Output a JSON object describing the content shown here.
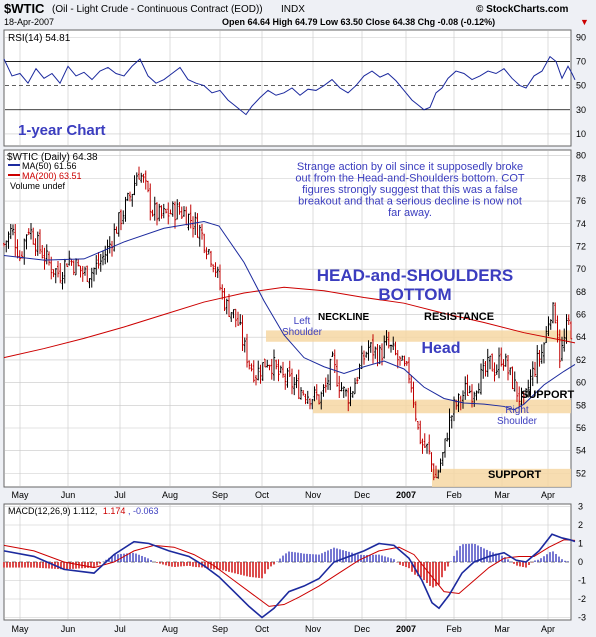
{
  "header": {
    "title": "$WTIC",
    "subtitle": "(Oil - Light Crude - Continuous Contract (EOD))",
    "exchange": "INDX",
    "date": "18-Apr-2007",
    "ohlc": "Open 64.64  High 64.79  Low 63.50  Close 64.38  Chg -0.08 (-0.12%)",
    "chg_arrow": "▼",
    "brand": "© StockCharts.com"
  },
  "colors": {
    "background": "#eef0f5",
    "panel": "#ffffff",
    "grid": "#c8c8c8",
    "up_bar": "#000000",
    "down_bar": "#c00000",
    "ma50": "#1c2a9e",
    "ma200": "#cc0000",
    "annotation_blue": "#3b3dbf",
    "band_fill": "#f6d7a3",
    "rsi_line": "#1c2a9e",
    "rsi_fill_low": "#e07090"
  },
  "rsi_panel": {
    "legend": "RSI(14) 54.81",
    "ticks": [
      "90",
      "70",
      "50",
      "30",
      "10"
    ],
    "label": "1-year Chart"
  },
  "price_panel": {
    "legend_main": "$WTIC (Daily) 64.38",
    "legend_ma50": "MA(50) 61.56",
    "legend_ma200": "MA(200) 63.51",
    "legend_volume": "Volume undef",
    "commentary": "Strange action by oil since it supposedly broke out from the Head-and-Shoulders bottom. COT figures strongly suggest that this was a false breakout and that a serious decline is now not far away.",
    "pattern_title_line1": "HEAD-and-SHOULDERS",
    "pattern_title_line2": "BOTTOM",
    "labels": {
      "neckline": "NECKLINE",
      "resistance": "RESISTANCE",
      "left_shoulder_1": "Left",
      "left_shoulder_2": "Shoulder",
      "head": "Head",
      "right_shoulder_1": "Right",
      "right_shoulder_2": "Shoulder",
      "support_upper": "SUPPORT",
      "support_lower": "SUPPORT"
    }
  },
  "macd_panel": {
    "legend_main": "MACD(12,26,9) 1.112,",
    "legend_signal": "1.174",
    "legend_hist": ", -0.063",
    "ticks": [
      "3",
      "2",
      "1",
      "0",
      "-1",
      "-2",
      "-3"
    ]
  },
  "x_axis": {
    "months": [
      "May",
      "Jun",
      "Jul",
      "Aug",
      "Sep",
      "Oct",
      "Nov",
      "Dec",
      "2007",
      "Feb",
      "Mar",
      "Apr"
    ]
  },
  "chart_data": {
    "type": "ohlc",
    "price_axis": {
      "ylim": [
        51,
        80
      ],
      "ticks": [
        52,
        54,
        56,
        58,
        60,
        62,
        64,
        66,
        68,
        70,
        72,
        74,
        76,
        78,
        80
      ]
    },
    "resistance_band": [
      63.6,
      64.6
    ],
    "upper_support_band": [
      57.3,
      58.5
    ],
    "lower_support_band": [
      50.8,
      52.4
    ],
    "price_path": [
      [
        0,
        72.2
      ],
      [
        8,
        73.5
      ],
      [
        16,
        71.0
      ],
      [
        24,
        73.8
      ],
      [
        32,
        72.4
      ],
      [
        40,
        71.2
      ],
      [
        48,
        70.1
      ],
      [
        56,
        69.6
      ],
      [
        64,
        71.0
      ],
      [
        72,
        70.3
      ],
      [
        80,
        69.6
      ],
      [
        88,
        69.8
      ],
      [
        96,
        70.6
      ],
      [
        104,
        71.8
      ],
      [
        112,
        73.6
      ],
      [
        120,
        75.2
      ],
      [
        128,
        76.8
      ],
      [
        134,
        78.8
      ],
      [
        140,
        77.6
      ],
      [
        148,
        75.2
      ],
      [
        156,
        74.6
      ],
      [
        164,
        74.9
      ],
      [
        172,
        75.2
      ],
      [
        180,
        75.0
      ],
      [
        188,
        74.3
      ],
      [
        196,
        73.4
      ],
      [
        204,
        71.8
      ],
      [
        210,
        70.6
      ],
      [
        216,
        68.4
      ],
      [
        222,
        66.8
      ],
      [
        228,
        66.3
      ],
      [
        234,
        65.2
      ],
      [
        240,
        63.2
      ],
      [
        246,
        61.6
      ],
      [
        252,
        60.8
      ],
      [
        258,
        61.4
      ],
      [
        264,
        62.1
      ],
      [
        270,
        61.4
      ],
      [
        276,
        60.5
      ],
      [
        284,
        60.2
      ],
      [
        292,
        59.6
      ],
      [
        300,
        59.2
      ],
      [
        308,
        58.8
      ],
      [
        316,
        58.6
      ],
      [
        322,
        59.6
      ],
      [
        328,
        61.8
      ],
      [
        334,
        60.2
      ],
      [
        340,
        59.1
      ],
      [
        346,
        58.8
      ],
      [
        352,
        60.4
      ],
      [
        358,
        61.8
      ],
      [
        364,
        63.1
      ],
      [
        370,
        62.8
      ],
      [
        376,
        62.4
      ],
      [
        382,
        63.4
      ],
      [
        388,
        62.8
      ],
      [
        394,
        62.0
      ],
      [
        400,
        61.2
      ],
      [
        406,
        60.6
      ],
      [
        410,
        58.4
      ],
      [
        414,
        55.8
      ],
      [
        418,
        54.6
      ],
      [
        424,
        54.1
      ],
      [
        428,
        52.6
      ],
      [
        432,
        51.6
      ],
      [
        436,
        52.8
      ],
      [
        440,
        53.9
      ],
      [
        444,
        56.1
      ],
      [
        450,
        57.8
      ],
      [
        456,
        58.4
      ],
      [
        462,
        59.4
      ],
      [
        468,
        59.2
      ],
      [
        474,
        60.2
      ],
      [
        480,
        60.7
      ],
      [
        486,
        61.7
      ],
      [
        492,
        61.1
      ],
      [
        498,
        62.5
      ],
      [
        504,
        61.0
      ],
      [
        510,
        59.8
      ],
      [
        516,
        58.6
      ],
      [
        520,
        57.9
      ],
      [
        526,
        60.2
      ],
      [
        532,
        61.6
      ],
      [
        538,
        62.7
      ],
      [
        542,
        64.2
      ],
      [
        546,
        66.4
      ],
      [
        552,
        65.9
      ],
      [
        556,
        62.2
      ],
      [
        560,
        63.6
      ],
      [
        564,
        65.3
      ],
      [
        568,
        64.4
      ],
      [
        571,
        64.4
      ]
    ],
    "ma50": [
      [
        0,
        71.2
      ],
      [
        40,
        70.8
      ],
      [
        80,
        70.9
      ],
      [
        120,
        72.4
      ],
      [
        160,
        73.6
      ],
      [
        200,
        74.2
      ],
      [
        215,
        73.8
      ],
      [
        240,
        70.6
      ],
      [
        260,
        67.2
      ],
      [
        280,
        64.2
      ],
      [
        300,
        62.2
      ],
      [
        320,
        61.4
      ],
      [
        340,
        60.8
      ],
      [
        360,
        61.4
      ],
      [
        380,
        61.9
      ],
      [
        400,
        61.2
      ],
      [
        420,
        59.6
      ],
      [
        440,
        58.6
      ],
      [
        460,
        58.2
      ],
      [
        480,
        58.1
      ],
      [
        500,
        57.9
      ],
      [
        510,
        57.6
      ],
      [
        520,
        58.1
      ],
      [
        540,
        59.8
      ],
      [
        560,
        61.0
      ],
      [
        571,
        61.6
      ]
    ],
    "ma200": [
      [
        0,
        62.2
      ],
      [
        40,
        63.0
      ],
      [
        80,
        63.9
      ],
      [
        120,
        64.9
      ],
      [
        160,
        66.0
      ],
      [
        200,
        67.1
      ],
      [
        240,
        67.9
      ],
      [
        280,
        68.4
      ],
      [
        320,
        68.1
      ],
      [
        360,
        67.5
      ],
      [
        400,
        67.0
      ],
      [
        440,
        66.1
      ],
      [
        480,
        65.3
      ],
      [
        520,
        64.4
      ],
      [
        560,
        63.7
      ],
      [
        571,
        63.5
      ]
    ],
    "rsi": [
      [
        0,
        72
      ],
      [
        8,
        58
      ],
      [
        16,
        60
      ],
      [
        24,
        52
      ],
      [
        32,
        64
      ],
      [
        40,
        56
      ],
      [
        48,
        60
      ],
      [
        56,
        52
      ],
      [
        64,
        66
      ],
      [
        72,
        58
      ],
      [
        80,
        61
      ],
      [
        88,
        55
      ],
      [
        96,
        62
      ],
      [
        104,
        65
      ],
      [
        112,
        60
      ],
      [
        120,
        58
      ],
      [
        128,
        66
      ],
      [
        136,
        72
      ],
      [
        144,
        58
      ],
      [
        152,
        52
      ],
      [
        160,
        55
      ],
      [
        168,
        60
      ],
      [
        176,
        65
      ],
      [
        184,
        55
      ],
      [
        192,
        52
      ],
      [
        200,
        50
      ],
      [
        208,
        44
      ],
      [
        216,
        46
      ],
      [
        224,
        38
      ],
      [
        230,
        34
      ],
      [
        236,
        30
      ],
      [
        242,
        26
      ],
      [
        248,
        33
      ],
      [
        256,
        40
      ],
      [
        264,
        46
      ],
      [
        272,
        42
      ],
      [
        280,
        44
      ],
      [
        288,
        48
      ],
      [
        296,
        42
      ],
      [
        304,
        47
      ],
      [
        312,
        46
      ],
      [
        320,
        50
      ],
      [
        328,
        55
      ],
      [
        336,
        48
      ],
      [
        344,
        44
      ],
      [
        352,
        50
      ],
      [
        360,
        58
      ],
      [
        368,
        62
      ],
      [
        376,
        57
      ],
      [
        384,
        60
      ],
      [
        392,
        54
      ],
      [
        400,
        46
      ],
      [
        408,
        38
      ],
      [
        414,
        34
      ],
      [
        420,
        30
      ],
      [
        426,
        32
      ],
      [
        432,
        44
      ],
      [
        438,
        48
      ],
      [
        444,
        56
      ],
      [
        452,
        62
      ],
      [
        460,
        60
      ],
      [
        468,
        55
      ],
      [
        476,
        58
      ],
      [
        484,
        62
      ],
      [
        492,
        60
      ],
      [
        500,
        64
      ],
      [
        508,
        56
      ],
      [
        516,
        50
      ],
      [
        522,
        48
      ],
      [
        530,
        58
      ],
      [
        538,
        62
      ],
      [
        546,
        74
      ],
      [
        552,
        70
      ],
      [
        558,
        56
      ],
      [
        564,
        66
      ],
      [
        568,
        60
      ],
      [
        571,
        54.8
      ]
    ],
    "macd": [
      [
        0,
        0.6
      ],
      [
        30,
        0.3
      ],
      [
        60,
        -0.4
      ],
      [
        90,
        -0.6
      ],
      [
        110,
        0.4
      ],
      [
        130,
        1.1
      ],
      [
        145,
        1.0
      ],
      [
        165,
        0.6
      ],
      [
        185,
        0.3
      ],
      [
        200,
        -0.2
      ],
      [
        215,
        -0.8
      ],
      [
        230,
        -1.6
      ],
      [
        245,
        -2.4
      ],
      [
        258,
        -3.0
      ],
      [
        270,
        -2.5
      ],
      [
        285,
        -1.6
      ],
      [
        300,
        -1.3
      ],
      [
        315,
        -0.9
      ],
      [
        330,
        0.0
      ],
      [
        345,
        0.3
      ],
      [
        360,
        0.6
      ],
      [
        375,
        1.0
      ],
      [
        390,
        0.9
      ],
      [
        405,
        0.2
      ],
      [
        418,
        -1.0
      ],
      [
        428,
        -2.2
      ],
      [
        435,
        -2.5
      ],
      [
        445,
        -1.8
      ],
      [
        458,
        -0.6
      ],
      [
        470,
        0.0
      ],
      [
        485,
        0.3
      ],
      [
        500,
        0.5
      ],
      [
        512,
        0.1
      ],
      [
        522,
        0.0
      ],
      [
        535,
        0.6
      ],
      [
        548,
        1.5
      ],
      [
        558,
        1.3
      ],
      [
        566,
        1.2
      ],
      [
        571,
        1.11
      ]
    ],
    "signal": [
      [
        0,
        0.9
      ],
      [
        30,
        0.6
      ],
      [
        60,
        0.0
      ],
      [
        90,
        -0.3
      ],
      [
        110,
        0.0
      ],
      [
        130,
        0.6
      ],
      [
        150,
        0.9
      ],
      [
        170,
        0.8
      ],
      [
        190,
        0.4
      ],
      [
        210,
        -0.2
      ],
      [
        230,
        -1.0
      ],
      [
        250,
        -1.8
      ],
      [
        265,
        -2.4
      ],
      [
        280,
        -2.3
      ],
      [
        295,
        -1.9
      ],
      [
        315,
        -1.3
      ],
      [
        335,
        -0.6
      ],
      [
        355,
        0.1
      ],
      [
        375,
        0.6
      ],
      [
        395,
        0.8
      ],
      [
        410,
        0.4
      ],
      [
        425,
        -0.6
      ],
      [
        440,
        -1.6
      ],
      [
        455,
        -1.7
      ],
      [
        470,
        -1.0
      ],
      [
        485,
        -0.3
      ],
      [
        500,
        0.2
      ],
      [
        515,
        0.3
      ],
      [
        530,
        0.3
      ],
      [
        545,
        0.8
      ],
      [
        560,
        1.2
      ],
      [
        571,
        1.17
      ]
    ]
  }
}
